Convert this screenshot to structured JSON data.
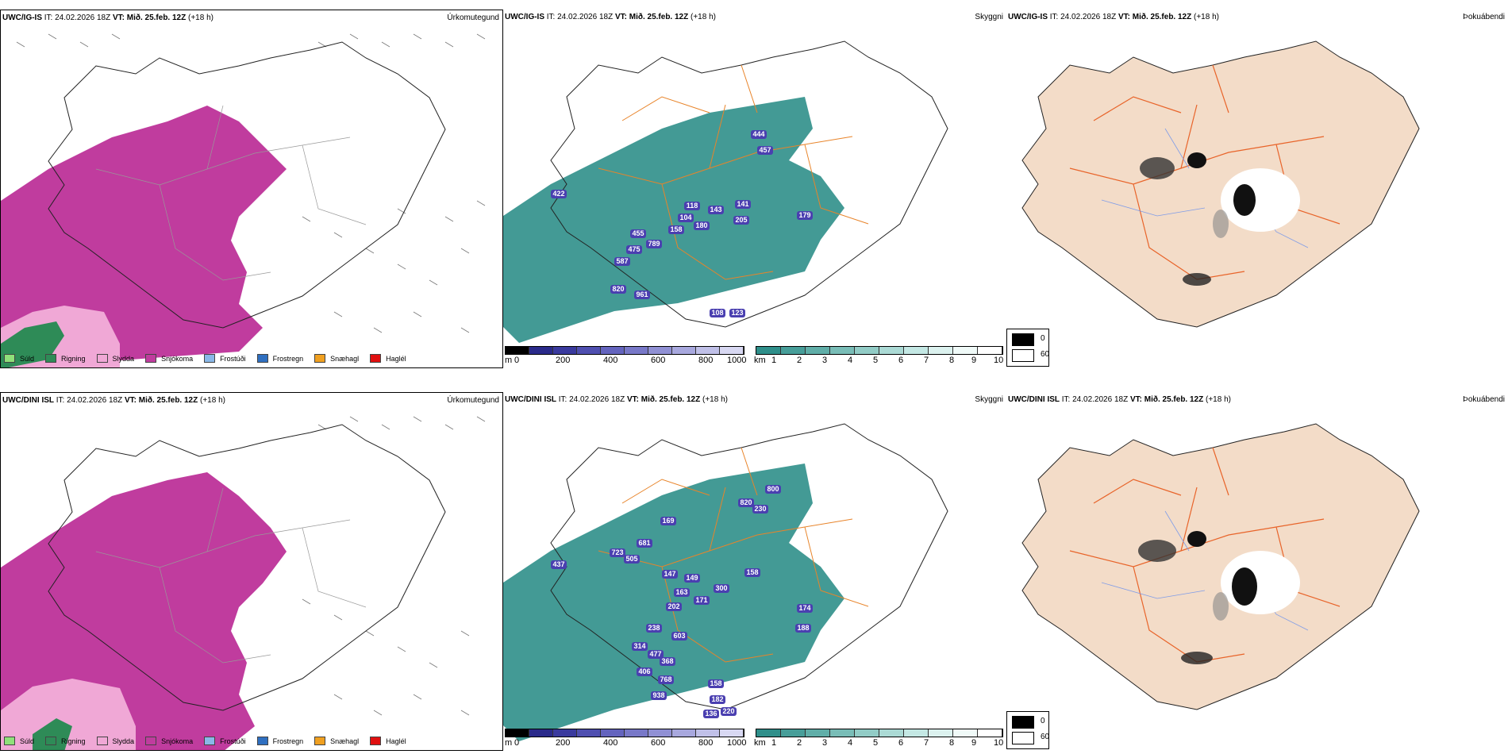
{
  "rows": [
    {
      "model": "UWC/IG-IS",
      "run": "IT: 24.02.2026 18Z",
      "valid": "VT: Mið. 25.feb. 12Z",
      "lead": "(+18 h)",
      "precip_title": "Úrkomutegund",
      "vis_title": "Skyggni",
      "fog_title": "Þokuábendi",
      "cloud_labels": [
        "422",
        "444",
        "457",
        "118",
        "143",
        "141",
        "104",
        "180",
        "158",
        "205",
        "455",
        "789",
        "475",
        "587",
        "820",
        "961",
        "179",
        "108",
        "123"
      ]
    },
    {
      "model": "UWC/DINI ISL",
      "run": "IT: 24.02.2026 18Z",
      "valid": "VT: Mið. 25.feb. 12Z",
      "lead": "(+18 h)",
      "precip_title": "Úrkomutegund",
      "vis_title": "Skyggni",
      "fog_title": "Þokuábendi",
      "cloud_labels": [
        "800",
        "820",
        "230",
        "169",
        "723",
        "681",
        "505",
        "437",
        "147",
        "149",
        "158",
        "300",
        "163",
        "171",
        "202",
        "238",
        "603",
        "314",
        "477",
        "368",
        "174",
        "188",
        "406",
        "768",
        "938",
        "158",
        "182",
        "136",
        "220"
      ]
    }
  ],
  "precip_legend": [
    {
      "label": "Súld",
      "color": "#8fe07a"
    },
    {
      "label": "Rigning",
      "color": "#2e8b57"
    },
    {
      "label": "Slydda",
      "color": "#f0a8d6"
    },
    {
      "label": "Snjókoma",
      "color": "#c03c9e"
    },
    {
      "label": "Frostúði",
      "color": "#8ab8e8"
    },
    {
      "label": "Frostregn",
      "color": "#2f6fc0"
    },
    {
      "label": "Snæhagl",
      "color": "#f0a020"
    },
    {
      "label": "Haglél",
      "color": "#e01010"
    }
  ],
  "cloud_base_bar": {
    "unit": "m",
    "ticks": [
      "0",
      "200",
      "400",
      "600",
      "800",
      "1000"
    ]
  },
  "visibility_bar": {
    "unit": "km",
    "ticks": [
      "1",
      "2",
      "3",
      "4",
      "5",
      "6",
      "7",
      "8",
      "9",
      "10"
    ]
  },
  "fog_legend": {
    "high": "0",
    "low": "60"
  },
  "colors": {
    "snow": "#c03c9e",
    "sleet": "#f0a8d6",
    "rain": "#2e8b57",
    "vis": "#2f8f8a",
    "cloud": "#4a3fb0",
    "land": "#f3dcc8",
    "road": "#e8642a",
    "river": "#7f9ce8"
  }
}
